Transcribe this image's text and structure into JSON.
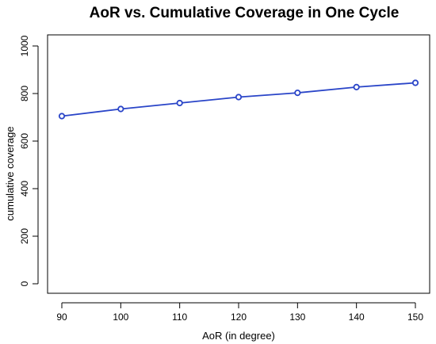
{
  "chart_data": {
    "type": "line",
    "title": "AoR  vs. Cumulative Coverage in One Cycle",
    "xlabel": "AoR (in degree)",
    "ylabel": "cumulative coverage",
    "x": [
      90,
      100,
      110,
      120,
      130,
      140,
      150
    ],
    "series": [
      {
        "values": [
          705,
          735,
          760,
          785,
          803,
          827,
          845
        ],
        "color": "#2a45c8"
      }
    ],
    "xlim": [
      90,
      150
    ],
    "ylim": [
      0,
      1000
    ],
    "xticks": [
      90,
      100,
      110,
      120,
      130,
      140,
      150
    ],
    "yticks": [
      0,
      200,
      400,
      600,
      800,
      1000
    ],
    "grid": false,
    "marker": "open-circle"
  }
}
